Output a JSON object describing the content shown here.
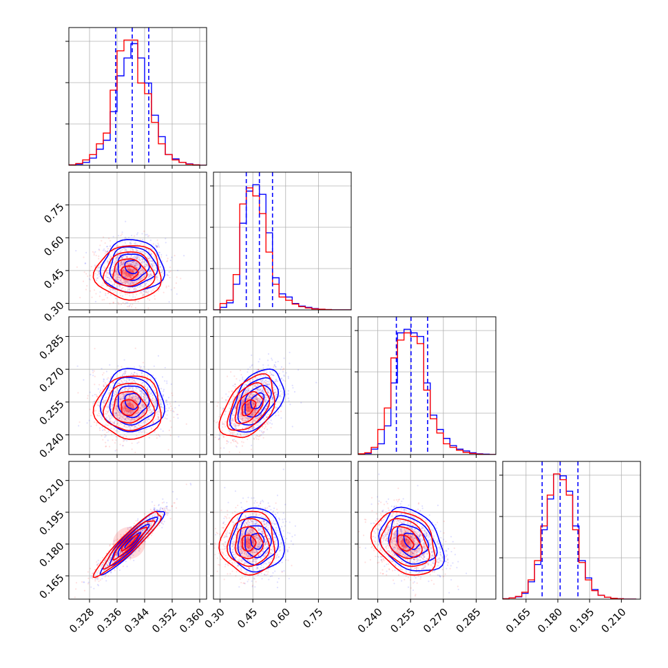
{
  "chart_data": {
    "type": "corner",
    "description_series": [
      {
        "name": "blue",
        "color": "#0000ff"
      },
      {
        "name": "red",
        "color": "#ff0000"
      }
    ],
    "colors": {
      "blue": "#0000ff",
      "red": "#ff0000",
      "grid": "#b0b0b0",
      "frame": "#000000"
    },
    "parameters": [
      {
        "range": [
          0.322,
          0.362
        ],
        "ticks": [
          0.328,
          0.336,
          0.344,
          0.352,
          0.36
        ],
        "tick_labels": [
          "0.328",
          "0.336",
          "0.344",
          "0.352",
          "0.360"
        ],
        "quantiles": [
          0.3356,
          0.3404,
          0.3452
        ]
      },
      {
        "range": [
          0.27,
          0.9
        ],
        "ticks": [
          0.3,
          0.45,
          0.6,
          0.75
        ],
        "tick_labels": [
          "0.30",
          "0.45",
          "0.60",
          "0.75"
        ],
        "quantiles": [
          0.42,
          0.48,
          0.54
        ]
      },
      {
        "range": [
          0.231,
          0.294
        ],
        "ticks": [
          0.24,
          0.255,
          0.27,
          0.285
        ],
        "tick_labels": [
          "0.240",
          "0.255",
          "0.270",
          "0.285"
        ],
        "quantiles": [
          0.2485,
          0.2552,
          0.2628
        ]
      },
      {
        "range": [
          0.154,
          0.219
        ],
        "ticks": [
          0.165,
          0.18,
          0.195,
          0.21
        ],
        "tick_labels": [
          "0.165",
          "0.180",
          "0.195",
          "0.210"
        ],
        "quantiles": [
          0.1726,
          0.1811,
          0.1895
        ]
      }
    ],
    "histograms": [
      {
        "param": 0,
        "bins": [
          0.322,
          0.324,
          0.326,
          0.328,
          0.33,
          0.332,
          0.334,
          0.336,
          0.338,
          0.34,
          0.342,
          0.344,
          0.346,
          0.348,
          0.35,
          0.352,
          0.354,
          0.356,
          0.358,
          0.36,
          0.362
        ],
        "blue": [
          1,
          3,
          8,
          20,
          45,
          70,
          150,
          250,
          300,
          340,
          300,
          230,
          140,
          80,
          30,
          18,
          8,
          4,
          1,
          0
        ],
        "red": [
          1,
          5,
          15,
          30,
          60,
          90,
          210,
          320,
          350,
          350,
          230,
          200,
          120,
          60,
          30,
          15,
          8,
          3,
          1,
          0
        ]
      },
      {
        "param": 1,
        "bins": [
          0.27,
          0.3,
          0.33,
          0.36,
          0.39,
          0.42,
          0.45,
          0.48,
          0.51,
          0.54,
          0.57,
          0.6,
          0.63,
          0.66,
          0.69,
          0.72,
          0.75,
          0.78,
          0.81,
          0.84,
          0.87,
          0.9
        ],
        "blue": [
          0,
          8,
          22,
          80,
          270,
          370,
          390,
          360,
          240,
          100,
          50,
          40,
          20,
          12,
          8,
          4,
          2,
          1,
          0,
          0,
          0
        ],
        "red": [
          0,
          20,
          30,
          110,
          330,
          380,
          355,
          300,
          180,
          80,
          40,
          30,
          18,
          10,
          6,
          3,
          2,
          1,
          0,
          0,
          0
        ]
      },
      {
        "param": 2,
        "bins": [
          0.231,
          0.234,
          0.237,
          0.24,
          0.243,
          0.246,
          0.249,
          0.252,
          0.255,
          0.258,
          0.261,
          0.264,
          0.267,
          0.27,
          0.273,
          0.276,
          0.279,
          0.282,
          0.285,
          0.288,
          0.291,
          0.294
        ],
        "blue": [
          1,
          3,
          15,
          30,
          80,
          200,
          340,
          350,
          340,
          330,
          200,
          110,
          70,
          45,
          25,
          15,
          10,
          5,
          2,
          1,
          0
        ],
        "red": [
          2,
          5,
          20,
          70,
          130,
          270,
          320,
          340,
          330,
          310,
          180,
          100,
          60,
          30,
          20,
          12,
          6,
          3,
          1,
          0,
          0
        ]
      },
      {
        "param": 3,
        "bins": [
          0.154,
          0.157,
          0.16,
          0.163,
          0.166,
          0.169,
          0.172,
          0.175,
          0.178,
          0.181,
          0.184,
          0.187,
          0.19,
          0.193,
          0.196,
          0.199,
          0.202,
          0.205,
          0.208,
          0.211,
          0.214,
          0.217
        ],
        "blue": [
          1,
          3,
          6,
          15,
          45,
          90,
          180,
          260,
          325,
          320,
          280,
          190,
          100,
          55,
          25,
          10,
          5,
          2,
          1,
          0,
          0
        ],
        "red": [
          1,
          3,
          7,
          18,
          50,
          100,
          190,
          270,
          325,
          310,
          270,
          180,
          95,
          50,
          22,
          10,
          5,
          2,
          1,
          0,
          0
        ]
      }
    ],
    "pairs": [
      {
        "row": 1,
        "col": 0,
        "corr": 0.0,
        "blue": {
          "mean": [
            0.3405,
            0.468
          ],
          "sd": [
            0.0045,
            0.06
          ]
        },
        "red": {
          "mean": [
            0.3395,
            0.44
          ],
          "sd": [
            0.0048,
            0.062
          ]
        }
      },
      {
        "row": 2,
        "col": 0,
        "corr": 0.0,
        "blue": {
          "mean": [
            0.3405,
            0.2555
          ],
          "sd": [
            0.0045,
            0.0072
          ]
        },
        "red": {
          "mean": [
            0.3395,
            0.2525
          ],
          "sd": [
            0.0048,
            0.0072
          ]
        }
      },
      {
        "row": 2,
        "col": 1,
        "corr": 0.45,
        "blue": {
          "mean": [
            0.47,
            0.2555
          ],
          "sd": [
            0.06,
            0.0072
          ]
        },
        "red": {
          "mean": [
            0.43,
            0.2525
          ],
          "sd": [
            0.062,
            0.0072
          ]
        }
      },
      {
        "row": 3,
        "col": 0,
        "corr": 0.93,
        "blue": {
          "mean": [
            0.3405,
            0.1815
          ],
          "sd": [
            0.0045,
            0.0075
          ]
        },
        "red": {
          "mean": [
            0.3395,
            0.1805
          ],
          "sd": [
            0.0048,
            0.0075
          ]
        }
      },
      {
        "row": 3,
        "col": 1,
        "corr": 0.0,
        "blue": {
          "mean": [
            0.47,
            0.1815
          ],
          "sd": [
            0.06,
            0.0075
          ]
        },
        "red": {
          "mean": [
            0.43,
            0.1805
          ],
          "sd": [
            0.062,
            0.0075
          ]
        }
      },
      {
        "row": 3,
        "col": 2,
        "corr": -0.3,
        "blue": {
          "mean": [
            0.2555,
            0.1815
          ],
          "sd": [
            0.0072,
            0.0075
          ]
        },
        "red": {
          "mean": [
            0.2525,
            0.1805
          ],
          "sd": [
            0.0072,
            0.0075
          ]
        }
      }
    ],
    "contour_levels_sigma": [
      0.5,
      1.0,
      1.5,
      2.0
    ],
    "diag_yticks_fraction": [
      0.3,
      0.6,
      0.9
    ]
  }
}
